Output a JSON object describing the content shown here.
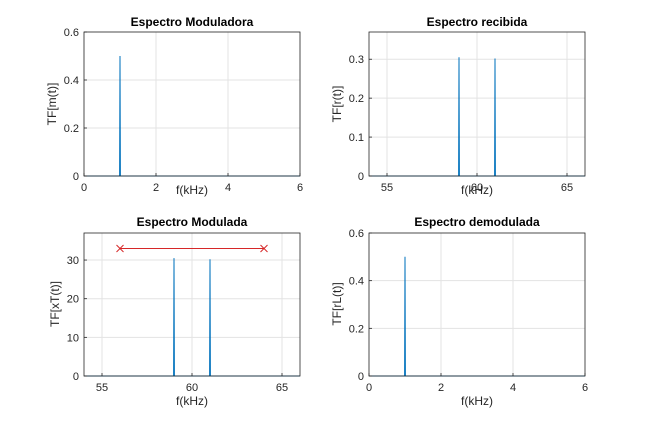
{
  "chart_data": [
    {
      "type": "line",
      "title": "Espectro Moduladora",
      "xlabel": "f(kHz)",
      "ylabel": "TF[m(t)]",
      "xlim": [
        0,
        6
      ],
      "ylim": [
        0,
        0.6
      ],
      "xticks": [
        0,
        2,
        4,
        6
      ],
      "xtick_labels": [
        "0",
        "2",
        "4",
        "6"
      ],
      "yticks": [
        0,
        0.2,
        0.4,
        0.6
      ],
      "ytick_labels": [
        "0",
        "0.2",
        "0.4",
        "0.6"
      ],
      "grid": true,
      "series": [
        {
          "color": "#0072bd",
          "x": [
            0,
            0.99,
            1.0,
            1.01,
            6
          ],
          "y": [
            0,
            0,
            0.5,
            0,
            0
          ]
        }
      ]
    },
    {
      "type": "line",
      "title": "Espectro recibida",
      "xlabel": "f(kHz)",
      "ylabel": "TF[r(t)]",
      "xlim": [
        54,
        66
      ],
      "ylim": [
        0,
        0.37
      ],
      "xticks": [
        55,
        60,
        65
      ],
      "xtick_labels": [
        "55",
        "60",
        "65"
      ],
      "yticks": [
        0,
        0.1,
        0.2,
        0.3
      ],
      "ytick_labels": [
        "0",
        "0.1",
        "0.2",
        "0.3"
      ],
      "grid": true,
      "series": [
        {
          "color": "#0072bd",
          "x": [
            54,
            58.98,
            59.0,
            59.02,
            60.98,
            61.0,
            61.02,
            66
          ],
          "y": [
            0,
            0,
            0.305,
            0,
            0,
            0.302,
            0,
            0
          ]
        }
      ]
    },
    {
      "type": "line",
      "title": "Espectro Modulada",
      "xlabel": "f(kHz)",
      "ylabel": "TF[xT(t)]",
      "xlim": [
        54,
        66
      ],
      "ylim": [
        0,
        37
      ],
      "xticks": [
        55,
        60,
        65
      ],
      "xtick_labels": [
        "55",
        "60",
        "65"
      ],
      "yticks": [
        0,
        10,
        20,
        30
      ],
      "ytick_labels": [
        "0",
        "10",
        "20",
        "30"
      ],
      "grid": true,
      "series": [
        {
          "color": "#0072bd",
          "x": [
            54,
            58.98,
            59.0,
            59.02,
            60.98,
            61.0,
            61.02,
            66
          ],
          "y": [
            0,
            0,
            30.5,
            0,
            0,
            30.2,
            0,
            0
          ]
        },
        {
          "color": "#d62728",
          "marker": "x",
          "x": [
            56,
            64
          ],
          "y": [
            33,
            33
          ]
        }
      ]
    },
    {
      "type": "line",
      "title": "Espectro demodulada",
      "xlabel": "f(kHz)",
      "ylabel": "TF[rL(t)]",
      "xlim": [
        0,
        6
      ],
      "ylim": [
        0,
        0.6
      ],
      "xticks": [
        0,
        2,
        4,
        6
      ],
      "xtick_labels": [
        "0",
        "2",
        "4",
        "6"
      ],
      "yticks": [
        0,
        0.2,
        0.4,
        0.6
      ],
      "ytick_labels": [
        "0",
        "0.2",
        "0.4",
        "0.6"
      ],
      "grid": true,
      "series": [
        {
          "color": "#0072bd",
          "x": [
            0,
            0.99,
            1.0,
            1.01,
            6
          ],
          "y": [
            0,
            0,
            0.5,
            0,
            0
          ]
        }
      ]
    }
  ]
}
